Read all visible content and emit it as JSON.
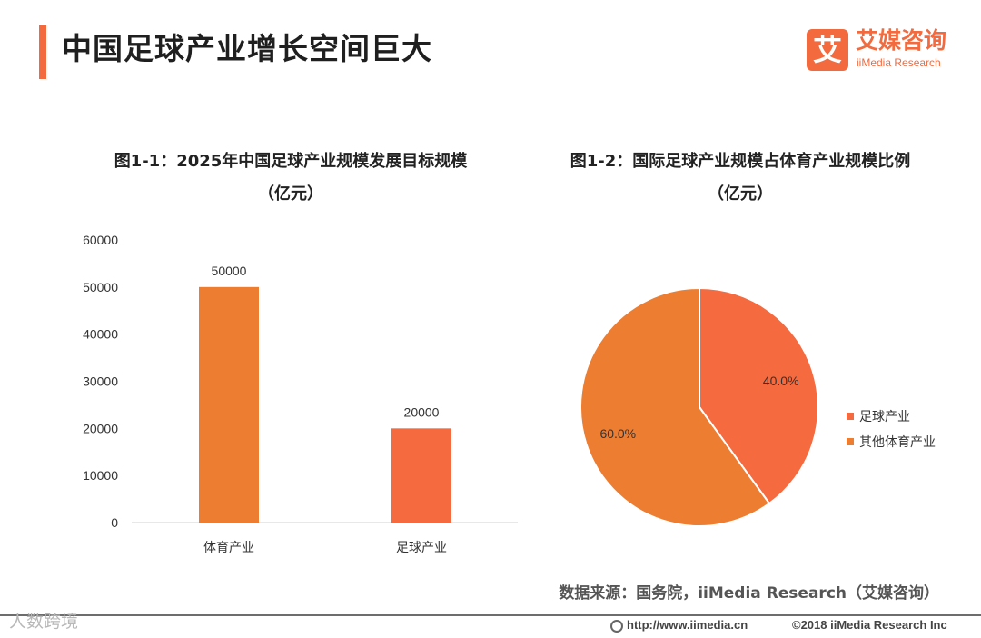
{
  "header": {
    "title": "中国足球产业增长空间巨大",
    "accent_color": "#f26a3d"
  },
  "logo": {
    "mark": "艾",
    "name_cn": "艾媒咨询",
    "name_en": "iiMedia Research"
  },
  "chart_data": [
    {
      "type": "bar",
      "title": "图1-1：2025年中国足球产业规模发展目标规模",
      "subtitle": "（亿元）",
      "categories": [
        "体育产业",
        "足球产业"
      ],
      "values": [
        50000,
        20000
      ],
      "data_labels": [
        "50000",
        "20000"
      ],
      "colors": [
        "#ed7d31",
        "#f56a3f"
      ],
      "ylim": [
        0,
        60000
      ],
      "yticks": [
        "0",
        "10000",
        "20000",
        "30000",
        "40000",
        "50000",
        "60000"
      ],
      "grid": false
    },
    {
      "type": "pie",
      "title": "图1-2：国际足球产业规模占体育产业规模比例",
      "subtitle": "（亿元）",
      "slices": [
        {
          "name": "足球产业",
          "value": 40.0,
          "label": "40.0%",
          "color": "#f56a3f"
        },
        {
          "name": "其他体育产业",
          "value": 60.0,
          "label": "60.0%",
          "color": "#ed7d31"
        }
      ],
      "legend": "right"
    }
  ],
  "source": "数据来源：国务院，iiMedia Research（艾媒咨询）",
  "footer": {
    "watermark": "人数跨境",
    "url": "http://www.iimedia.cn",
    "copyright": "©2018  iiMedia Research  Inc"
  }
}
